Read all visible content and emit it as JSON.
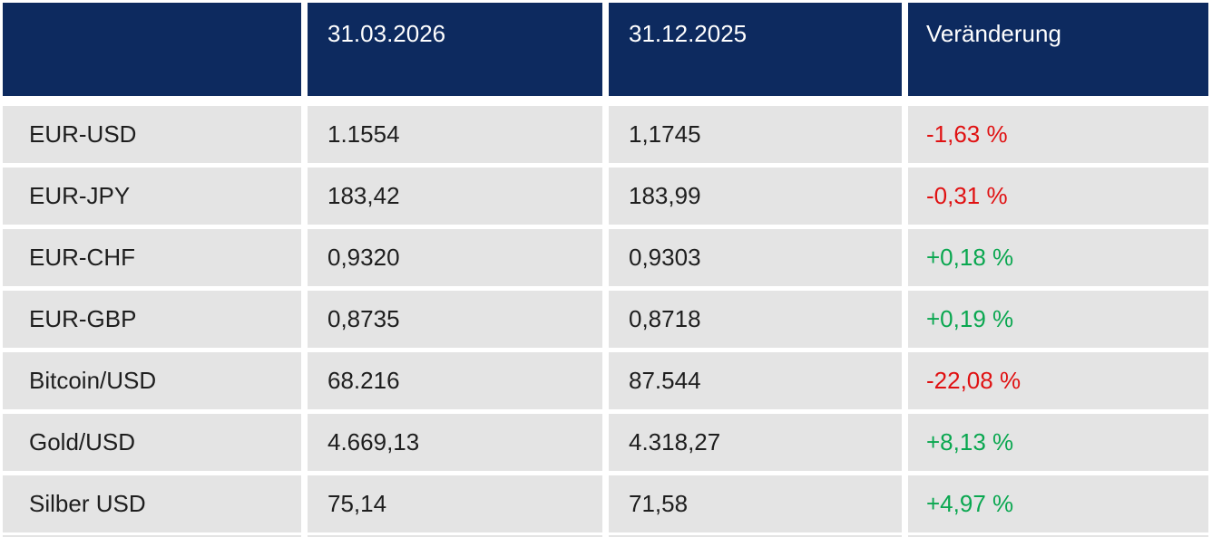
{
  "chart_data": {
    "type": "table",
    "title": "",
    "columns": [
      "",
      "31.03.2026",
      "31.12.2025",
      "Veränderung"
    ],
    "rows": [
      {
        "label": "EUR-USD",
        "val_2026": "1.1554",
        "val_2025": "1,1745",
        "change": "-1,63 %",
        "direction": "down"
      },
      {
        "label": "EUR-JPY",
        "val_2026": "183,42",
        "val_2025": "183,99",
        "change": "-0,31 %",
        "direction": "down"
      },
      {
        "label": "EUR-CHF",
        "val_2026": "0,9320",
        "val_2025": "0,9303",
        "change": "+0,18 %",
        "direction": "up"
      },
      {
        "label": "EUR-GBP",
        "val_2026": "0,8735",
        "val_2025": "0,8718",
        "change": "+0,19 %",
        "direction": "up"
      },
      {
        "label": "Bitcoin/USD",
        "val_2026": "68.216",
        "val_2025": "87.544",
        "change": "-22,08 %",
        "direction": "down"
      },
      {
        "label": "Gold/USD",
        "val_2026": "4.669,13",
        "val_2025": "4.318,27",
        "change": "+8,13 %",
        "direction": "up"
      },
      {
        "label": "Silber USD",
        "val_2026": "75,14",
        "val_2025": "71,58",
        "change": "+4,97 %",
        "direction": "up"
      }
    ],
    "legend_position": "none",
    "grid": "white-gutters-between-cells"
  },
  "colors": {
    "header_bg": "#0d2a5f",
    "row_bg": "#e4e4e4",
    "positive": "#0aa750",
    "negative": "#e01112",
    "header_text": "#ffffff",
    "cell_text": "#1e1e1e"
  }
}
